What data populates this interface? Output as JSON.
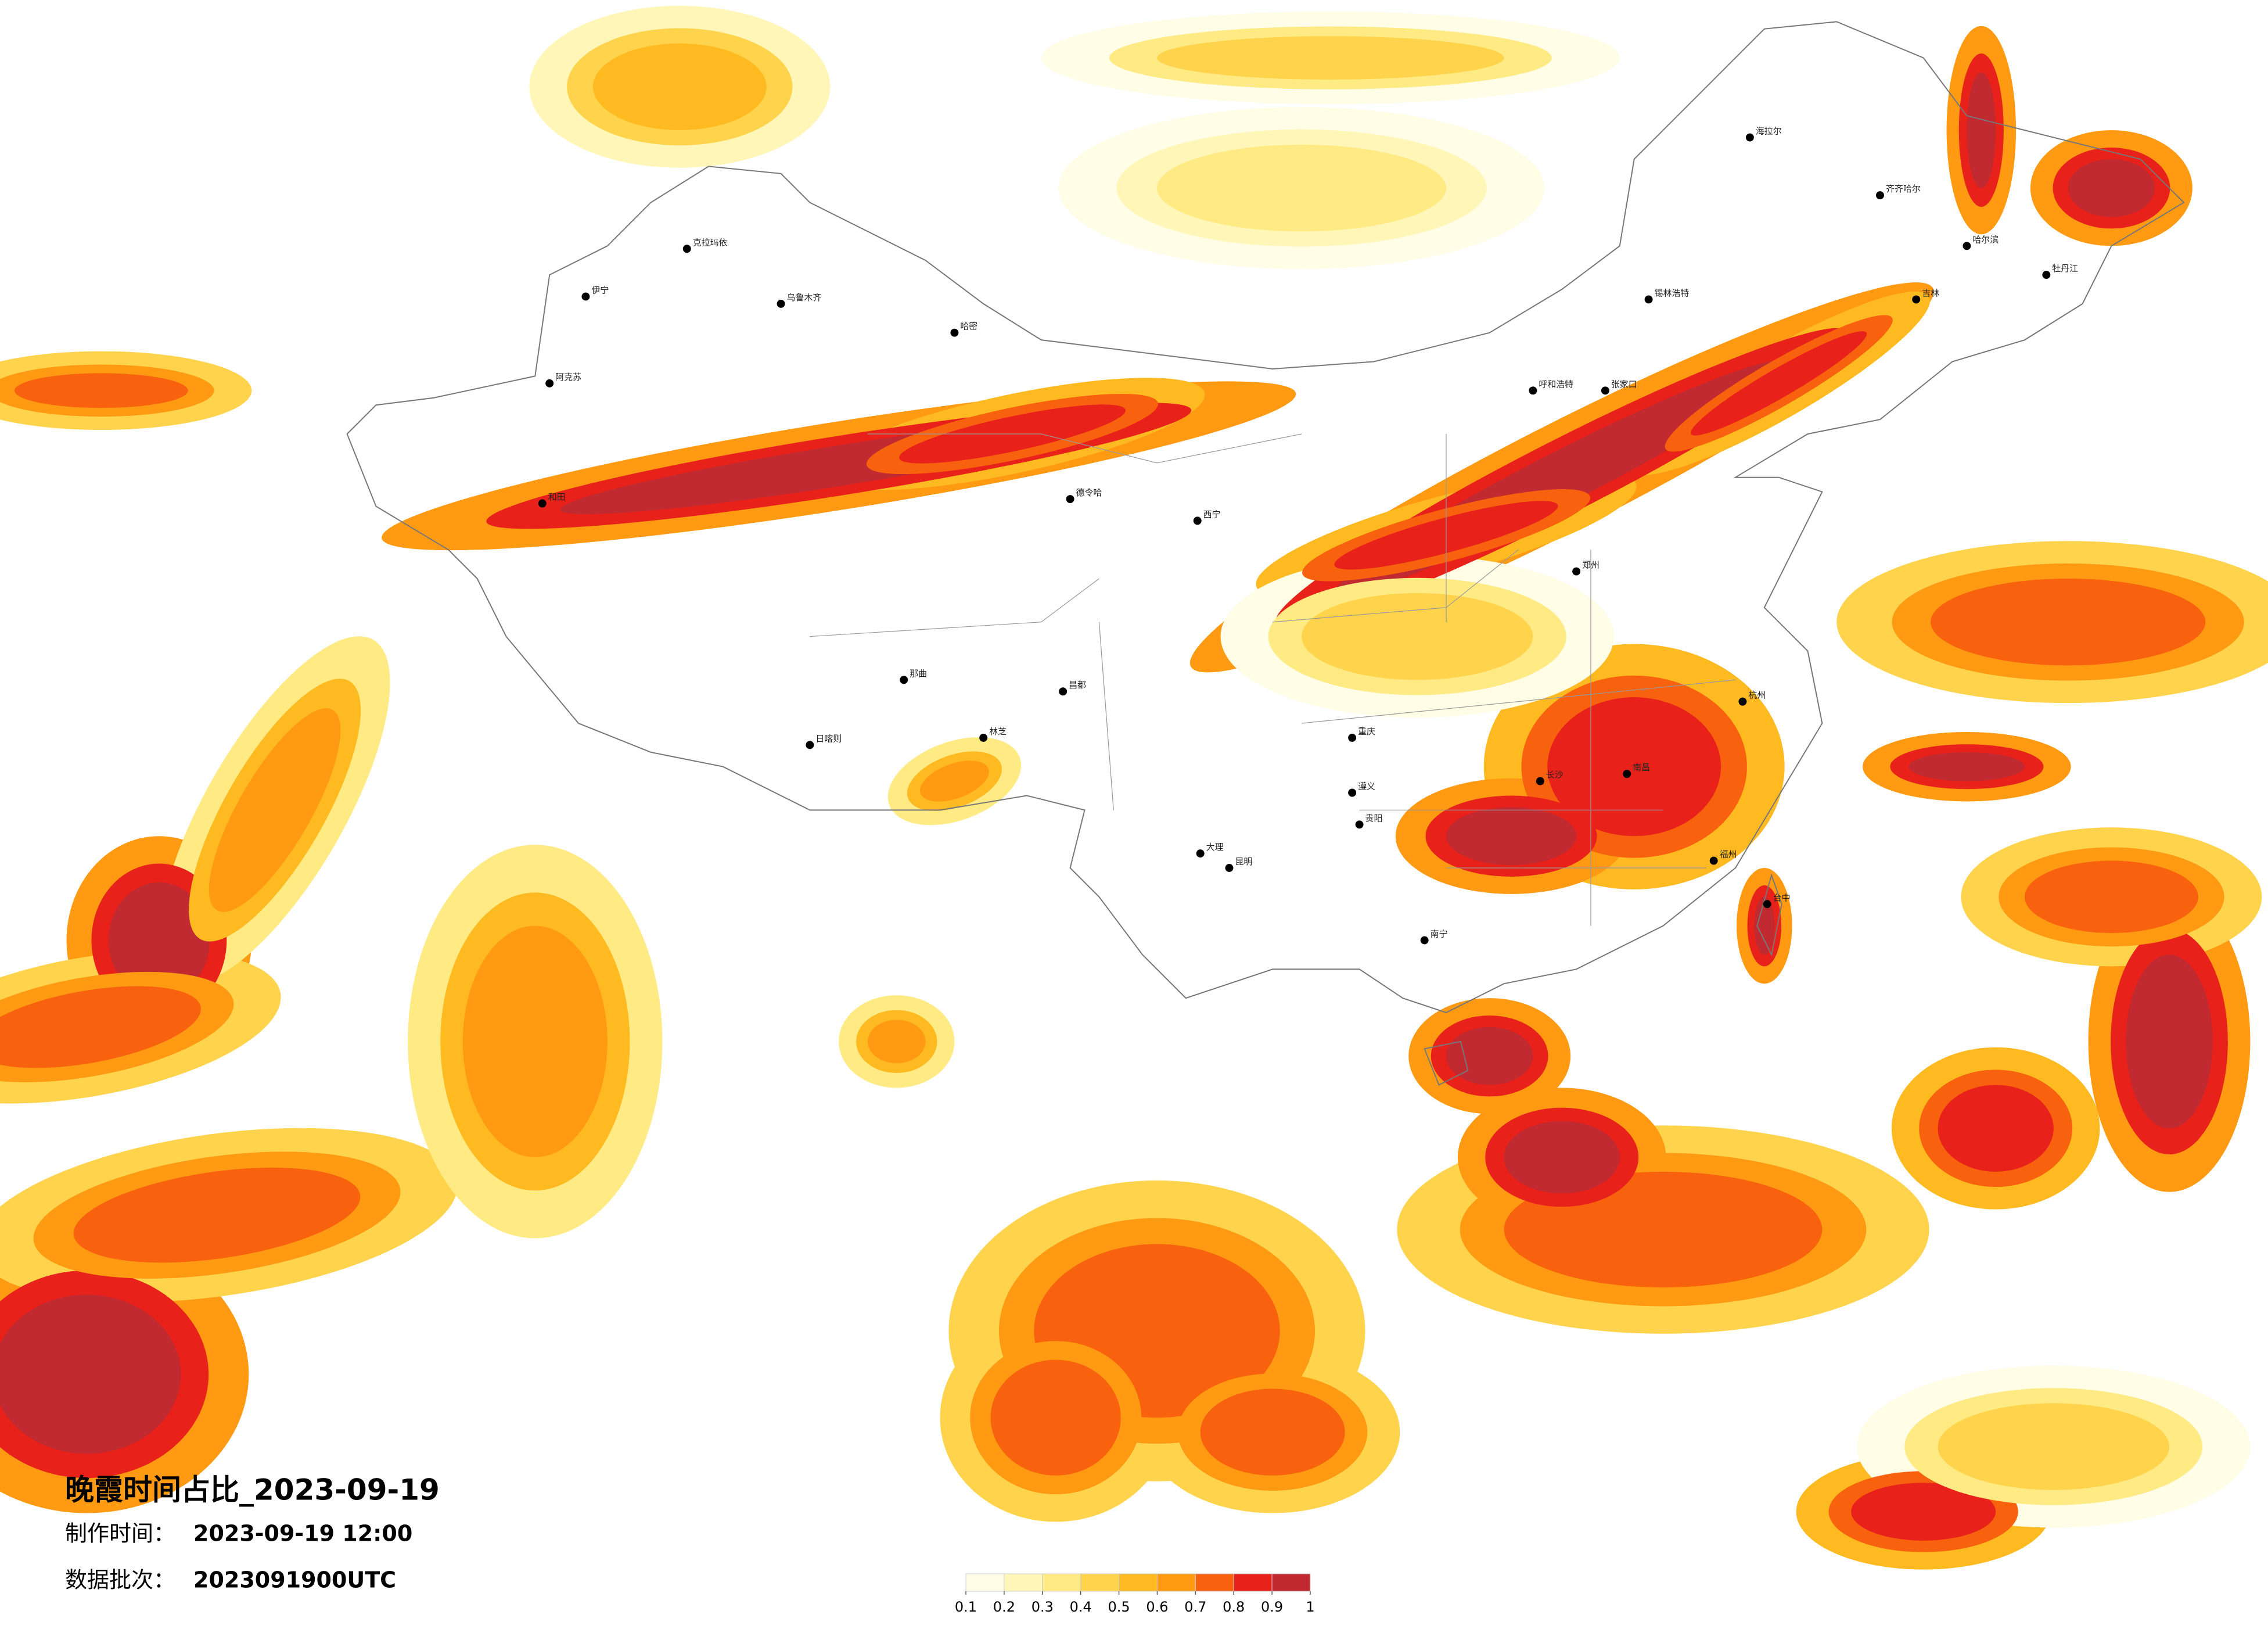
{
  "header": {
    "title": "晚霞时间占比_2023-09-19",
    "made_label": "制作时间：",
    "made_time": "2023-09-19 12:00",
    "batch_label": "数据批次：",
    "batch": "2023091900UTC"
  },
  "colorbar": {
    "ticks": [
      0.1,
      0.2,
      0.3,
      0.4,
      0.5,
      0.6,
      0.7,
      0.8,
      0.9,
      1
    ],
    "colors": [
      "#fffde6",
      "#fff6b8",
      "#ffea84",
      "#ffd44c",
      "#ffba22",
      "#ff9a12",
      "#f8620e",
      "#e8221a",
      "#c02a30"
    ]
  },
  "cities": [
    "克拉玛依",
    "乌鲁木齐",
    "伊宁",
    "阿克苏",
    "和田",
    "哈密",
    "德令哈",
    "日喀则",
    "那曲",
    "林芝",
    "昌都",
    "西宁",
    "海拉尔",
    "齐齐哈尔",
    "哈尔滨",
    "吉林",
    "锡林浩特",
    "呼和浩特",
    "张家口",
    "郑州",
    "重庆",
    "贵阳",
    "昆明",
    "南宁",
    "长沙",
    "南昌",
    "杭州",
    "福州",
    "台中",
    "牡丹江",
    "大理",
    "遵义"
  ]
}
